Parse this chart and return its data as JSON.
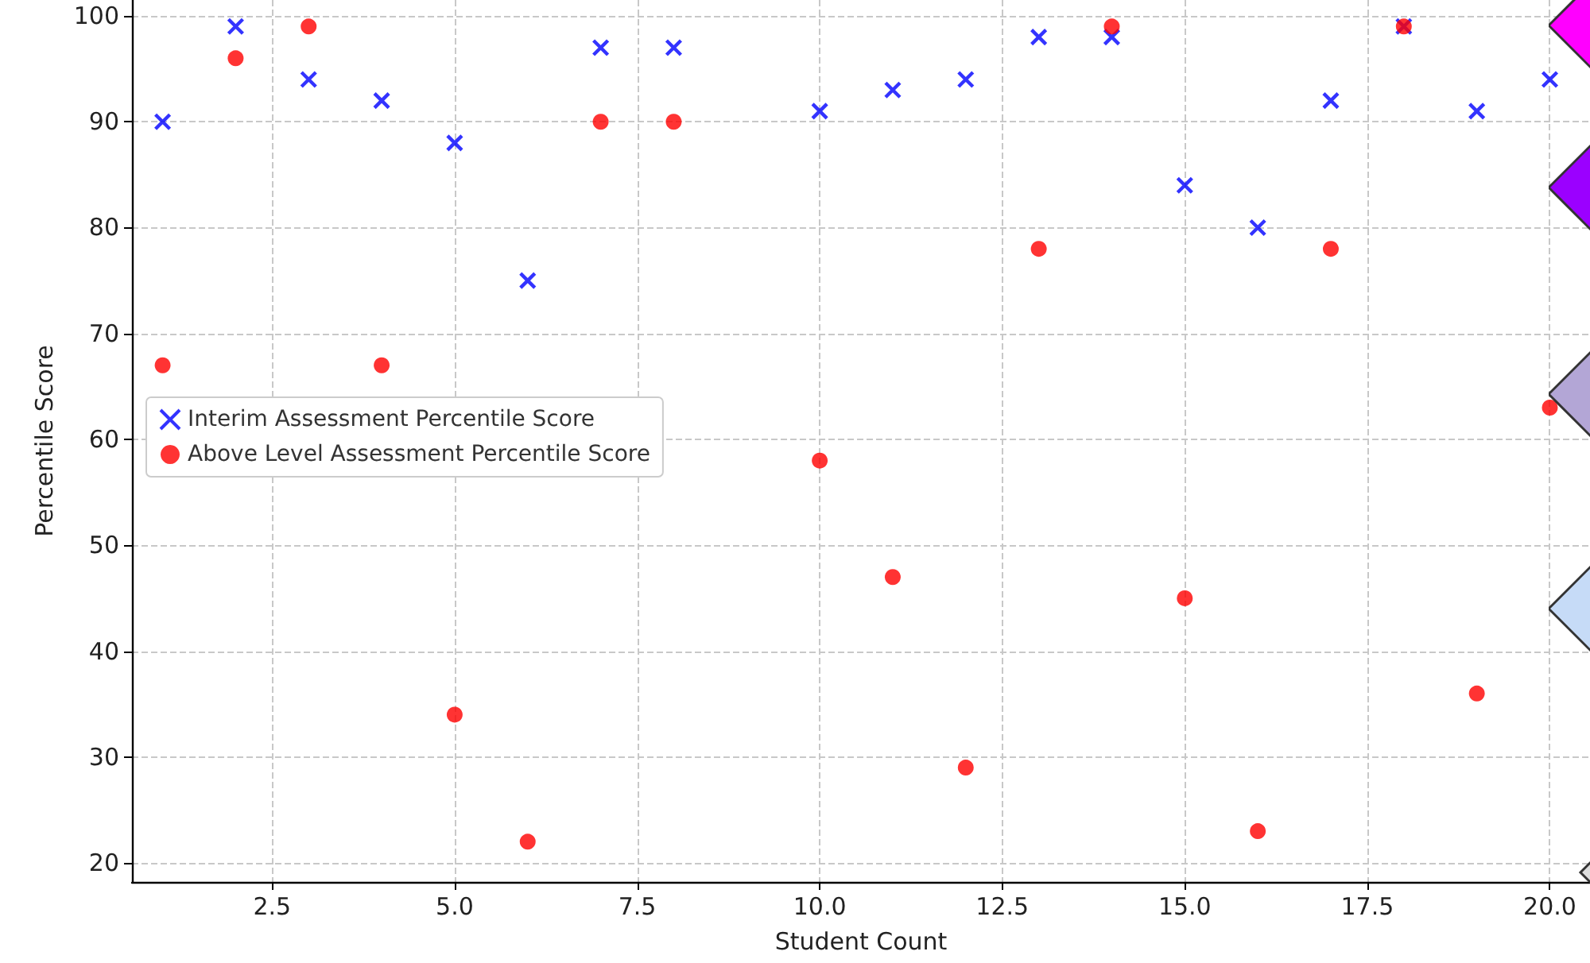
{
  "chart_data": {
    "type": "scatter",
    "xlabel": "Student Count",
    "ylabel": "Percentile Score",
    "xlim": [
      0.58,
      20.55
    ],
    "ylim": [
      18.2,
      101.5
    ],
    "xticks": [
      {
        "value": 2.5,
        "label": "2.5"
      },
      {
        "value": 5,
        "label": "5.0"
      },
      {
        "value": 7.5,
        "label": "7.5"
      },
      {
        "value": 10,
        "label": "10.0"
      },
      {
        "value": 12.5,
        "label": "12.5"
      },
      {
        "value": 15,
        "label": "15.0"
      },
      {
        "value": 17.5,
        "label": "17.5"
      },
      {
        "value": 20,
        "label": "20.0"
      }
    ],
    "yticks": [
      20,
      30,
      40,
      50,
      60,
      70,
      80,
      90,
      100
    ],
    "grid": true,
    "legend": "left",
    "series": [
      {
        "name": "Interim Assessment Percentile Score",
        "color": "#0000ff",
        "marker": "cross",
        "x": [
          1,
          2,
          3,
          4,
          5,
          6,
          7,
          8,
          10,
          11,
          12,
          13,
          14,
          15,
          16,
          17,
          18,
          19,
          20
        ],
        "values": [
          90,
          99,
          94,
          92,
          88,
          75,
          97,
          97,
          91,
          93,
          94,
          98,
          98,
          84,
          80,
          92,
          99,
          91,
          94
        ]
      },
      {
        "name": "Above Level Assessment Percentile Score",
        "color": "#ff0000",
        "marker": "circle",
        "x": [
          1,
          2,
          3,
          4,
          5,
          6,
          7,
          8,
          10,
          11,
          12,
          13,
          14,
          15,
          16,
          17,
          18,
          19,
          20
        ],
        "values": [
          67,
          96,
          99,
          67,
          34,
          22,
          90,
          90,
          58,
          47,
          29,
          78,
          99,
          45,
          23,
          78,
          99,
          36,
          63
        ]
      }
    ]
  }
}
